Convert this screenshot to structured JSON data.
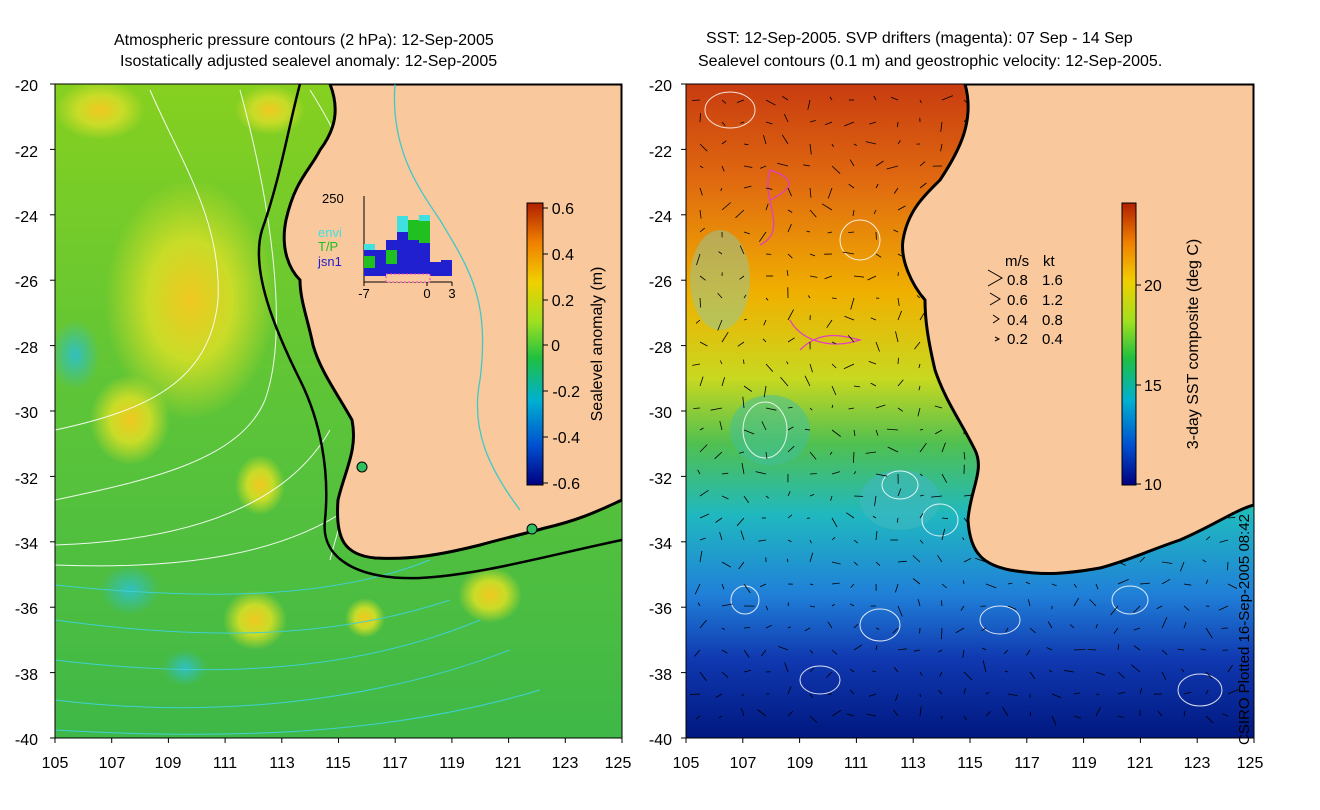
{
  "left_panel": {
    "title_line1": "Atmospheric pressure contours (2 hPa): 12-Sep-2005",
    "title_line2": "Isostatically adjusted sealevel anomaly: 12-Sep-2005",
    "lat_ticks": [
      "-20",
      "-22",
      "-24",
      "-26",
      "-28",
      "-30",
      "-32",
      "-34",
      "-36",
      "-38",
      "-40"
    ],
    "lon_ticks": [
      "105",
      "107",
      "109",
      "111",
      "113",
      "115",
      "117",
      "119",
      "121",
      "123",
      "125"
    ],
    "colorbar": {
      "label": "Sealevel anomaly (m)",
      "ticks": [
        "0.6",
        "0.4",
        "0.2",
        "0",
        "-0.2",
        "-0.4",
        "-0.6"
      ],
      "colors": [
        "#000080",
        "#0050d0",
        "#00b0d0",
        "#20c040",
        "#a0e020",
        "#f0d000",
        "#f08000",
        "#b02000"
      ]
    },
    "inset": {
      "ymax_label": "250",
      "xticks": [
        "-7",
        "0",
        "3"
      ],
      "legend": [
        {
          "label": "envi",
          "color": "#40e0e0"
        },
        {
          "label": "T/P",
          "color": "#20c020"
        },
        {
          "label": "jsn1",
          "color": "#2020d0"
        }
      ]
    },
    "colors": {
      "land": "#f9c89c",
      "coast": "#000000",
      "shelf": "#40c8c8"
    }
  },
  "right_panel": {
    "title_line1": "SST: 12-Sep-2005. SVP drifters (magenta): 07 Sep - 14 Sep",
    "title_line2": "Sealevel contours (0.1 m) and geostrophic velocity: 12-Sep-2005.",
    "lat_ticks": [
      "-20",
      "-22",
      "-24",
      "-26",
      "-28",
      "-30",
      "-32",
      "-34",
      "-36",
      "-38",
      "-40"
    ],
    "lon_ticks": [
      "105",
      "107",
      "109",
      "111",
      "113",
      "115",
      "117",
      "119",
      "121",
      "123",
      "125"
    ],
    "colorbar": {
      "label": "3-day SST composite (deg C)",
      "ticks": [
        "20",
        "15",
        "10"
      ],
      "colors": [
        "#000080",
        "#0050d0",
        "#00b0d0",
        "#20c040",
        "#a0e020",
        "#f0d000",
        "#f08000",
        "#b02000"
      ]
    },
    "speed_legend": {
      "header_ms": "m/s",
      "header_kt": "kt",
      "rows": [
        {
          "ms": "0.8",
          "kt": "1.6"
        },
        {
          "ms": "0.6",
          "kt": "1.2"
        },
        {
          "ms": "0.4",
          "kt": "0.8"
        },
        {
          "ms": "0.2",
          "kt": "0.4"
        }
      ]
    },
    "colors": {
      "land": "#f9c89c",
      "coast": "#000000",
      "drifter": "#e040c0"
    }
  },
  "credit": "CSIRO Plotted 16-Sep-2005 08:42"
}
